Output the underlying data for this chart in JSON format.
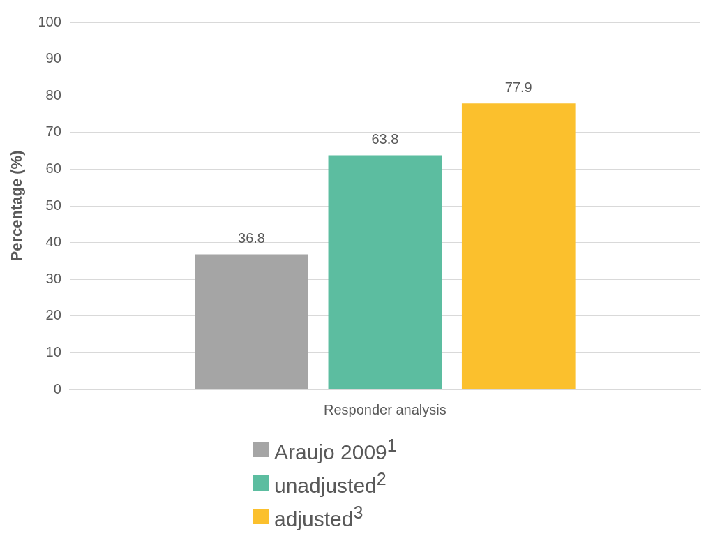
{
  "chart_data": {
    "type": "bar",
    "ylabel": "Percentage (%)",
    "categories": [
      "Responder analysis"
    ],
    "series": [
      {
        "name": "Araujo 2009$^{1}$",
        "color": "#a5a5a5",
        "values": [
          36.8
        ]
      },
      {
        "name": "unadjusted$^{2}$",
        "color": "#5cbda0",
        "values": [
          63.8
        ]
      },
      {
        "name": "adjusted$^{3}$",
        "color": "#fbc02d",
        "values": [
          77.9
        ]
      }
    ],
    "ylim": [
      0,
      100
    ],
    "yticks": [
      0,
      10,
      20,
      30,
      40,
      50,
      60,
      70,
      80,
      90,
      100
    ],
    "grid": "y",
    "data_labels": true,
    "legend": "bottom"
  }
}
